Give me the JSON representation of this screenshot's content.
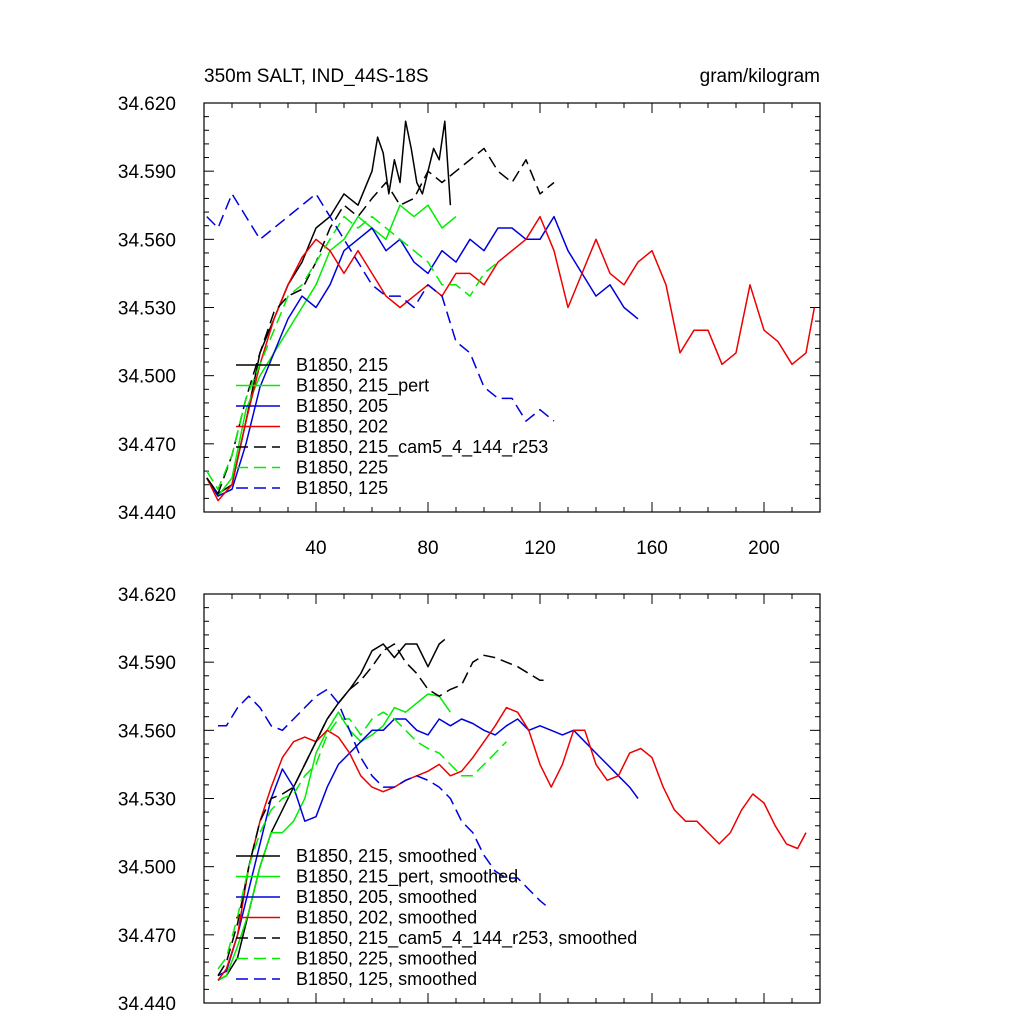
{
  "chart_data": [
    {
      "type": "line",
      "title": "350m SALT, IND_44S-18S",
      "units": "gram/kilogram",
      "xlim": [
        0,
        220
      ],
      "ylim": [
        34.44,
        34.62
      ],
      "xticks": [
        40,
        80,
        120,
        160,
        200
      ],
      "xtick_labels": [
        "40",
        "80",
        "120",
        "160",
        "200"
      ],
      "yticks": [
        34.44,
        34.47,
        34.5,
        34.53,
        34.56,
        34.59,
        34.62
      ],
      "ytick_labels": [
        "34.440",
        "34.470",
        "34.500",
        "34.530",
        "34.560",
        "34.590",
        "34.620"
      ],
      "series": [
        {
          "name": "B1850, 215",
          "color": "#000000",
          "dash": "solid",
          "x": [
            1,
            5,
            10,
            15,
            20,
            25,
            30,
            35,
            40,
            45,
            50,
            55,
            60,
            62,
            64,
            66,
            68,
            70,
            72,
            74,
            76,
            78,
            80,
            82,
            84,
            86,
            88
          ],
          "y": [
            34.455,
            34.448,
            34.452,
            34.48,
            34.51,
            34.525,
            34.54,
            34.55,
            34.565,
            34.57,
            34.58,
            34.575,
            34.59,
            34.605,
            34.598,
            34.58,
            34.595,
            34.585,
            34.612,
            34.6,
            34.585,
            34.58,
            34.59,
            34.6,
            34.595,
            34.612,
            34.575
          ]
        },
        {
          "name": "B1850, 215_pert",
          "color": "#00ee00",
          "dash": "solid",
          "x": [
            1,
            5,
            10,
            15,
            20,
            25,
            30,
            35,
            40,
            45,
            50,
            55,
            60,
            65,
            70,
            75,
            80,
            85,
            90
          ],
          "y": [
            34.455,
            34.447,
            34.455,
            34.485,
            34.5,
            34.51,
            34.52,
            34.53,
            34.54,
            34.555,
            34.56,
            34.57,
            34.565,
            34.56,
            34.575,
            34.57,
            34.575,
            34.565,
            34.57
          ]
        },
        {
          "name": "B1850, 205",
          "color": "#0000dd",
          "dash": "solid",
          "x": [
            1,
            5,
            10,
            15,
            20,
            25,
            30,
            35,
            40,
            45,
            50,
            55,
            60,
            65,
            70,
            75,
            80,
            85,
            90,
            95,
            100,
            105,
            110,
            115,
            120,
            125,
            130,
            135,
            140,
            145,
            150,
            155
          ],
          "y": [
            34.455,
            34.447,
            34.45,
            34.47,
            34.495,
            34.51,
            34.525,
            34.535,
            34.53,
            34.54,
            34.555,
            34.56,
            34.565,
            34.555,
            34.56,
            34.55,
            34.545,
            34.555,
            34.55,
            34.56,
            34.555,
            34.565,
            34.565,
            34.56,
            34.56,
            34.57,
            34.555,
            34.545,
            34.535,
            34.54,
            34.53,
            34.525
          ]
        },
        {
          "name": "B1850, 202",
          "color": "#ee0000",
          "dash": "solid",
          "x": [
            1,
            5,
            10,
            15,
            20,
            25,
            30,
            35,
            40,
            45,
            50,
            55,
            60,
            65,
            70,
            75,
            80,
            85,
            90,
            95,
            100,
            105,
            110,
            115,
            120,
            125,
            130,
            135,
            140,
            145,
            150,
            155,
            160,
            165,
            170,
            175,
            180,
            185,
            190,
            195,
            200,
            205,
            210,
            215,
            218
          ],
          "y": [
            34.455,
            34.445,
            34.452,
            34.48,
            34.505,
            34.525,
            34.54,
            34.552,
            34.56,
            34.555,
            34.545,
            34.555,
            34.545,
            34.535,
            34.53,
            34.535,
            34.54,
            34.535,
            34.545,
            34.545,
            34.54,
            34.55,
            34.555,
            34.56,
            34.57,
            34.555,
            34.53,
            34.545,
            34.56,
            34.545,
            34.54,
            34.55,
            34.555,
            34.54,
            34.51,
            34.52,
            34.52,
            34.505,
            34.51,
            34.54,
            34.52,
            34.515,
            34.505,
            34.51,
            34.53
          ]
        },
        {
          "name": "B1850, 215_cam5_4_144_r253",
          "color": "#000000",
          "dash": "dashed",
          "x": [
            1,
            5,
            10,
            15,
            20,
            25,
            30,
            35,
            40,
            45,
            50,
            55,
            60,
            65,
            70,
            75,
            80,
            85,
            90,
            95,
            100,
            105,
            110,
            115,
            120,
            125
          ],
          "y": [
            34.455,
            34.448,
            34.465,
            34.49,
            34.51,
            34.528,
            34.535,
            34.538,
            34.55,
            34.565,
            34.575,
            34.57,
            34.578,
            34.585,
            34.575,
            34.578,
            34.59,
            34.585,
            34.59,
            34.595,
            34.6,
            34.59,
            34.585,
            34.595,
            34.58,
            34.585
          ]
        },
        {
          "name": "B1850, 225",
          "color": "#00ee00",
          "dash": "dashed",
          "x": [
            1,
            5,
            10,
            15,
            20,
            25,
            30,
            35,
            40,
            45,
            50,
            55,
            60,
            65,
            70,
            75,
            80,
            85,
            90,
            95,
            100,
            105
          ],
          "y": [
            34.458,
            34.45,
            34.465,
            34.49,
            34.505,
            34.52,
            34.535,
            34.54,
            34.55,
            34.56,
            34.57,
            34.565,
            34.57,
            34.565,
            34.56,
            34.555,
            34.55,
            34.54,
            34.54,
            34.535,
            34.545,
            34.55
          ]
        },
        {
          "name": "B1850, 125",
          "color": "#0000dd",
          "dash": "dashed",
          "x": [
            1,
            5,
            10,
            15,
            20,
            25,
            30,
            35,
            40,
            45,
            50,
            55,
            60,
            65,
            70,
            75,
            80,
            85,
            90,
            95,
            100,
            105,
            110,
            115,
            120,
            125
          ],
          "y": [
            34.57,
            34.565,
            34.58,
            34.57,
            34.56,
            34.565,
            34.57,
            34.575,
            34.58,
            34.57,
            34.56,
            34.55,
            34.54,
            34.535,
            34.535,
            34.53,
            34.54,
            34.535,
            34.515,
            34.51,
            34.495,
            34.49,
            34.49,
            34.48,
            34.485,
            34.48
          ]
        }
      ],
      "legend": {
        "position": "bottom-left",
        "entries": [
          "B1850, 215",
          "B1850, 215_pert",
          "B1850, 205",
          "B1850, 202",
          "B1850, 215_cam5_4_144_r253",
          "B1850, 225",
          "B1850, 125"
        ]
      }
    },
    {
      "type": "line",
      "title": "",
      "xlim": [
        0,
        220
      ],
      "ylim": [
        34.44,
        34.62
      ],
      "xticks": [
        40,
        80,
        120,
        160,
        200
      ],
      "xtick_labels": [],
      "yticks": [
        34.44,
        34.47,
        34.5,
        34.53,
        34.56,
        34.59,
        34.62
      ],
      "ytick_labels": [
        "34.440",
        "34.470",
        "34.500",
        "34.530",
        "34.560",
        "34.590",
        "34.620"
      ],
      "series": [
        {
          "name": "B1850, 215, smoothed",
          "color": "#000000",
          "dash": "solid",
          "x": [
            5,
            8,
            12,
            16,
            20,
            24,
            28,
            32,
            36,
            40,
            44,
            48,
            52,
            56,
            60,
            64,
            68,
            72,
            76,
            80,
            84,
            86
          ],
          "y": [
            34.45,
            34.452,
            34.46,
            34.48,
            34.5,
            34.515,
            34.525,
            34.535,
            34.545,
            34.555,
            34.565,
            34.572,
            34.578,
            34.585,
            34.595,
            34.598,
            34.592,
            34.598,
            34.598,
            34.588,
            34.598,
            34.6
          ]
        },
        {
          "name": "B1850, 215_pert, smoothed",
          "color": "#00ee00",
          "dash": "solid",
          "x": [
            5,
            8,
            12,
            16,
            20,
            24,
            28,
            32,
            36,
            40,
            44,
            48,
            52,
            56,
            60,
            64,
            68,
            72,
            76,
            80,
            84,
            88
          ],
          "y": [
            34.45,
            34.452,
            34.465,
            34.48,
            34.5,
            34.515,
            34.515,
            34.52,
            34.53,
            34.55,
            34.56,
            34.568,
            34.56,
            34.555,
            34.558,
            34.562,
            34.57,
            34.568,
            34.572,
            34.576,
            34.575,
            34.568
          ]
        },
        {
          "name": "B1850, 205, smoothed",
          "color": "#0000dd",
          "dash": "solid",
          "x": [
            5,
            8,
            12,
            16,
            20,
            24,
            28,
            32,
            36,
            40,
            44,
            48,
            52,
            56,
            60,
            64,
            68,
            72,
            76,
            80,
            84,
            88,
            92,
            96,
            100,
            104,
            108,
            112,
            116,
            120,
            124,
            128,
            132,
            136,
            140,
            144,
            148,
            152,
            155
          ],
          "y": [
            34.452,
            34.454,
            34.47,
            34.49,
            34.51,
            34.53,
            34.543,
            34.535,
            34.52,
            34.522,
            34.535,
            34.545,
            34.55,
            34.555,
            34.56,
            34.56,
            34.565,
            34.565,
            34.56,
            34.558,
            34.565,
            34.562,
            34.565,
            34.563,
            34.56,
            34.558,
            34.562,
            34.565,
            34.56,
            34.562,
            34.56,
            34.558,
            34.56,
            34.555,
            34.55,
            34.545,
            34.54,
            34.535,
            34.53
          ]
        },
        {
          "name": "B1850, 202, smoothed",
          "color": "#ee0000",
          "dash": "solid",
          "x": [
            5,
            8,
            12,
            16,
            20,
            24,
            28,
            32,
            36,
            40,
            44,
            48,
            52,
            56,
            60,
            64,
            68,
            72,
            76,
            80,
            84,
            88,
            92,
            96,
            100,
            104,
            108,
            112,
            116,
            120,
            124,
            128,
            132,
            136,
            140,
            144,
            148,
            152,
            156,
            160,
            164,
            168,
            172,
            176,
            180,
            184,
            188,
            192,
            196,
            200,
            204,
            208,
            212,
            215
          ],
          "y": [
            34.45,
            34.455,
            34.47,
            34.5,
            34.52,
            34.535,
            34.548,
            34.555,
            34.557,
            34.555,
            34.56,
            34.557,
            34.55,
            34.54,
            34.535,
            34.533,
            34.535,
            34.538,
            34.54,
            34.542,
            34.545,
            34.54,
            34.542,
            34.548,
            34.555,
            34.562,
            34.57,
            34.568,
            34.56,
            34.545,
            34.535,
            34.545,
            34.56,
            34.56,
            34.545,
            34.538,
            34.54,
            34.55,
            34.552,
            34.548,
            34.535,
            34.525,
            34.52,
            34.52,
            34.515,
            34.51,
            34.515,
            34.525,
            34.532,
            34.528,
            34.518,
            34.51,
            34.508,
            34.515
          ]
        },
        {
          "name": "B1850, 215_cam5_4_144_r253, smoothed",
          "color": "#000000",
          "dash": "dashed",
          "x": [
            5,
            8,
            12,
            16,
            20,
            24,
            28,
            32,
            36,
            40,
            44,
            48,
            52,
            56,
            60,
            64,
            68,
            72,
            76,
            80,
            84,
            88,
            92,
            96,
            100,
            104,
            108,
            112,
            116,
            120,
            122
          ],
          "y": [
            34.452,
            34.458,
            34.475,
            34.5,
            34.52,
            34.53,
            34.532,
            34.535,
            34.545,
            34.555,
            34.565,
            34.572,
            34.578,
            34.582,
            34.588,
            34.595,
            34.598,
            34.59,
            34.585,
            34.578,
            34.575,
            34.578,
            34.58,
            34.59,
            34.593,
            34.592,
            34.59,
            34.588,
            34.585,
            34.582,
            34.582
          ]
        },
        {
          "name": "B1850, 225, smoothed",
          "color": "#00ee00",
          "dash": "dashed",
          "x": [
            5,
            8,
            12,
            16,
            20,
            24,
            28,
            32,
            36,
            40,
            44,
            48,
            52,
            56,
            60,
            64,
            68,
            72,
            76,
            80,
            84,
            88,
            92,
            96,
            100,
            104,
            108
          ],
          "y": [
            34.455,
            34.46,
            34.478,
            34.5,
            34.515,
            34.525,
            34.53,
            34.532,
            34.54,
            34.545,
            34.558,
            34.565,
            34.565,
            34.558,
            34.565,
            34.568,
            34.565,
            34.56,
            34.555,
            34.552,
            34.55,
            34.545,
            34.54,
            34.54,
            34.545,
            34.55,
            34.555
          ]
        },
        {
          "name": "B1850, 125, smoothed",
          "color": "#0000dd",
          "dash": "dashed",
          "x": [
            5,
            8,
            12,
            16,
            20,
            24,
            28,
            32,
            36,
            40,
            44,
            48,
            52,
            56,
            60,
            64,
            68,
            72,
            76,
            80,
            84,
            88,
            92,
            96,
            100,
            104,
            108,
            112,
            116,
            120,
            122
          ],
          "y": [
            34.562,
            34.562,
            34.57,
            34.575,
            34.57,
            34.562,
            34.56,
            34.565,
            34.57,
            34.575,
            34.578,
            34.572,
            34.56,
            34.548,
            34.54,
            34.535,
            34.535,
            34.538,
            34.54,
            34.538,
            34.535,
            34.53,
            34.52,
            34.515,
            34.505,
            34.498,
            34.495,
            34.495,
            34.49,
            34.485,
            34.483
          ]
        }
      ],
      "legend": {
        "position": "bottom-left",
        "entries": [
          "B1850, 215, smoothed",
          "B1850, 215_pert, smoothed",
          "B1850, 205, smoothed",
          "B1850, 202, smoothed",
          "B1850, 215_cam5_4_144_r253, smoothed",
          "B1850, 225, smoothed",
          "B1850, 125, smoothed"
        ]
      }
    }
  ]
}
